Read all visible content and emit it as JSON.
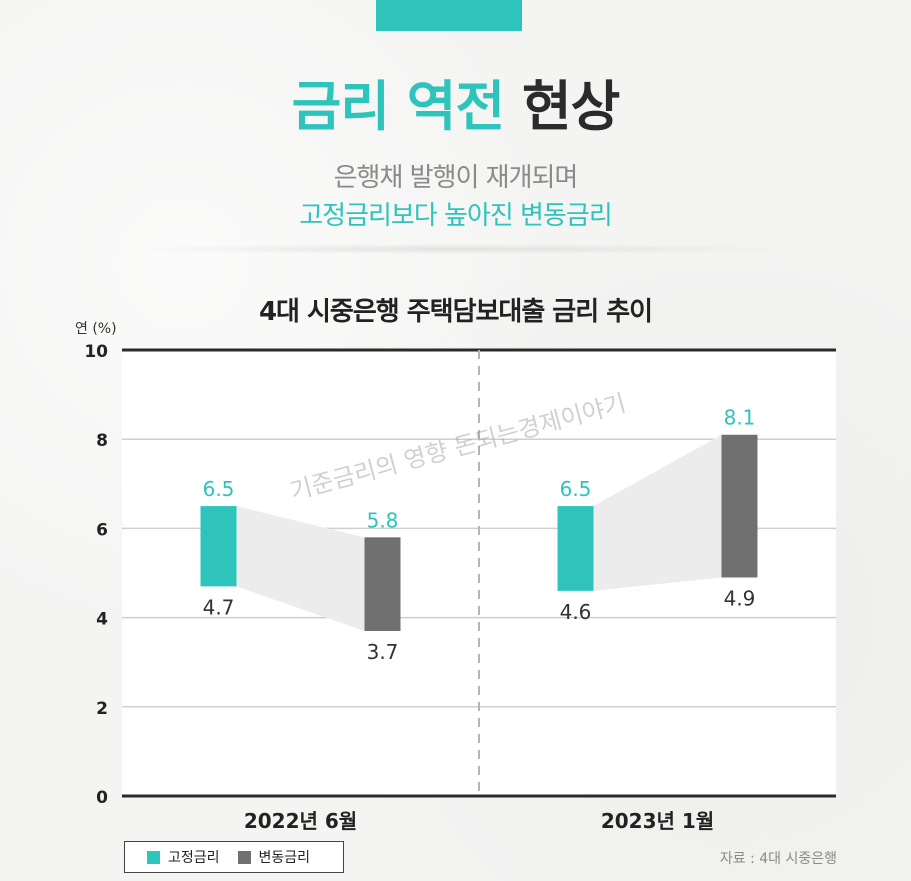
{
  "headline": {
    "accent_text": "금리 역전",
    "dark_text": "현상"
  },
  "subtitle": {
    "line1": "은행채 발행이 재개되며",
    "line2": "고정금리보다 높아진 변동금리"
  },
  "colors": {
    "accent": "#2ec4bc",
    "fixed": "#2ec4bc",
    "variable": "#707070",
    "dark": "#2b2b2b",
    "muted": "#8a8a8a"
  },
  "chart_data": {
    "type": "bar",
    "title": "4대 시중은행 주택담보대출 금리 추이",
    "ylabel": "연 (%)",
    "ylim": [
      0,
      10
    ],
    "yticks": [
      "0",
      "2",
      "4",
      "6",
      "8",
      "10"
    ],
    "categories": [
      "2022년 6월",
      "2023년 1월"
    ],
    "series": [
      {
        "name": "고정금리",
        "color": "#2ec4bc",
        "low": [
          4.7,
          4.6
        ],
        "high": [
          6.5,
          6.5
        ]
      },
      {
        "name": "변동금리",
        "color": "#707070",
        "low": [
          3.7,
          4.9
        ],
        "high": [
          5.8,
          8.1
        ]
      }
    ],
    "grid": true,
    "legend_position": "bottom-left",
    "watermark": "기준금리의 영향 돈되는경제이야기"
  },
  "source": "자료 : 4대 시중은행"
}
